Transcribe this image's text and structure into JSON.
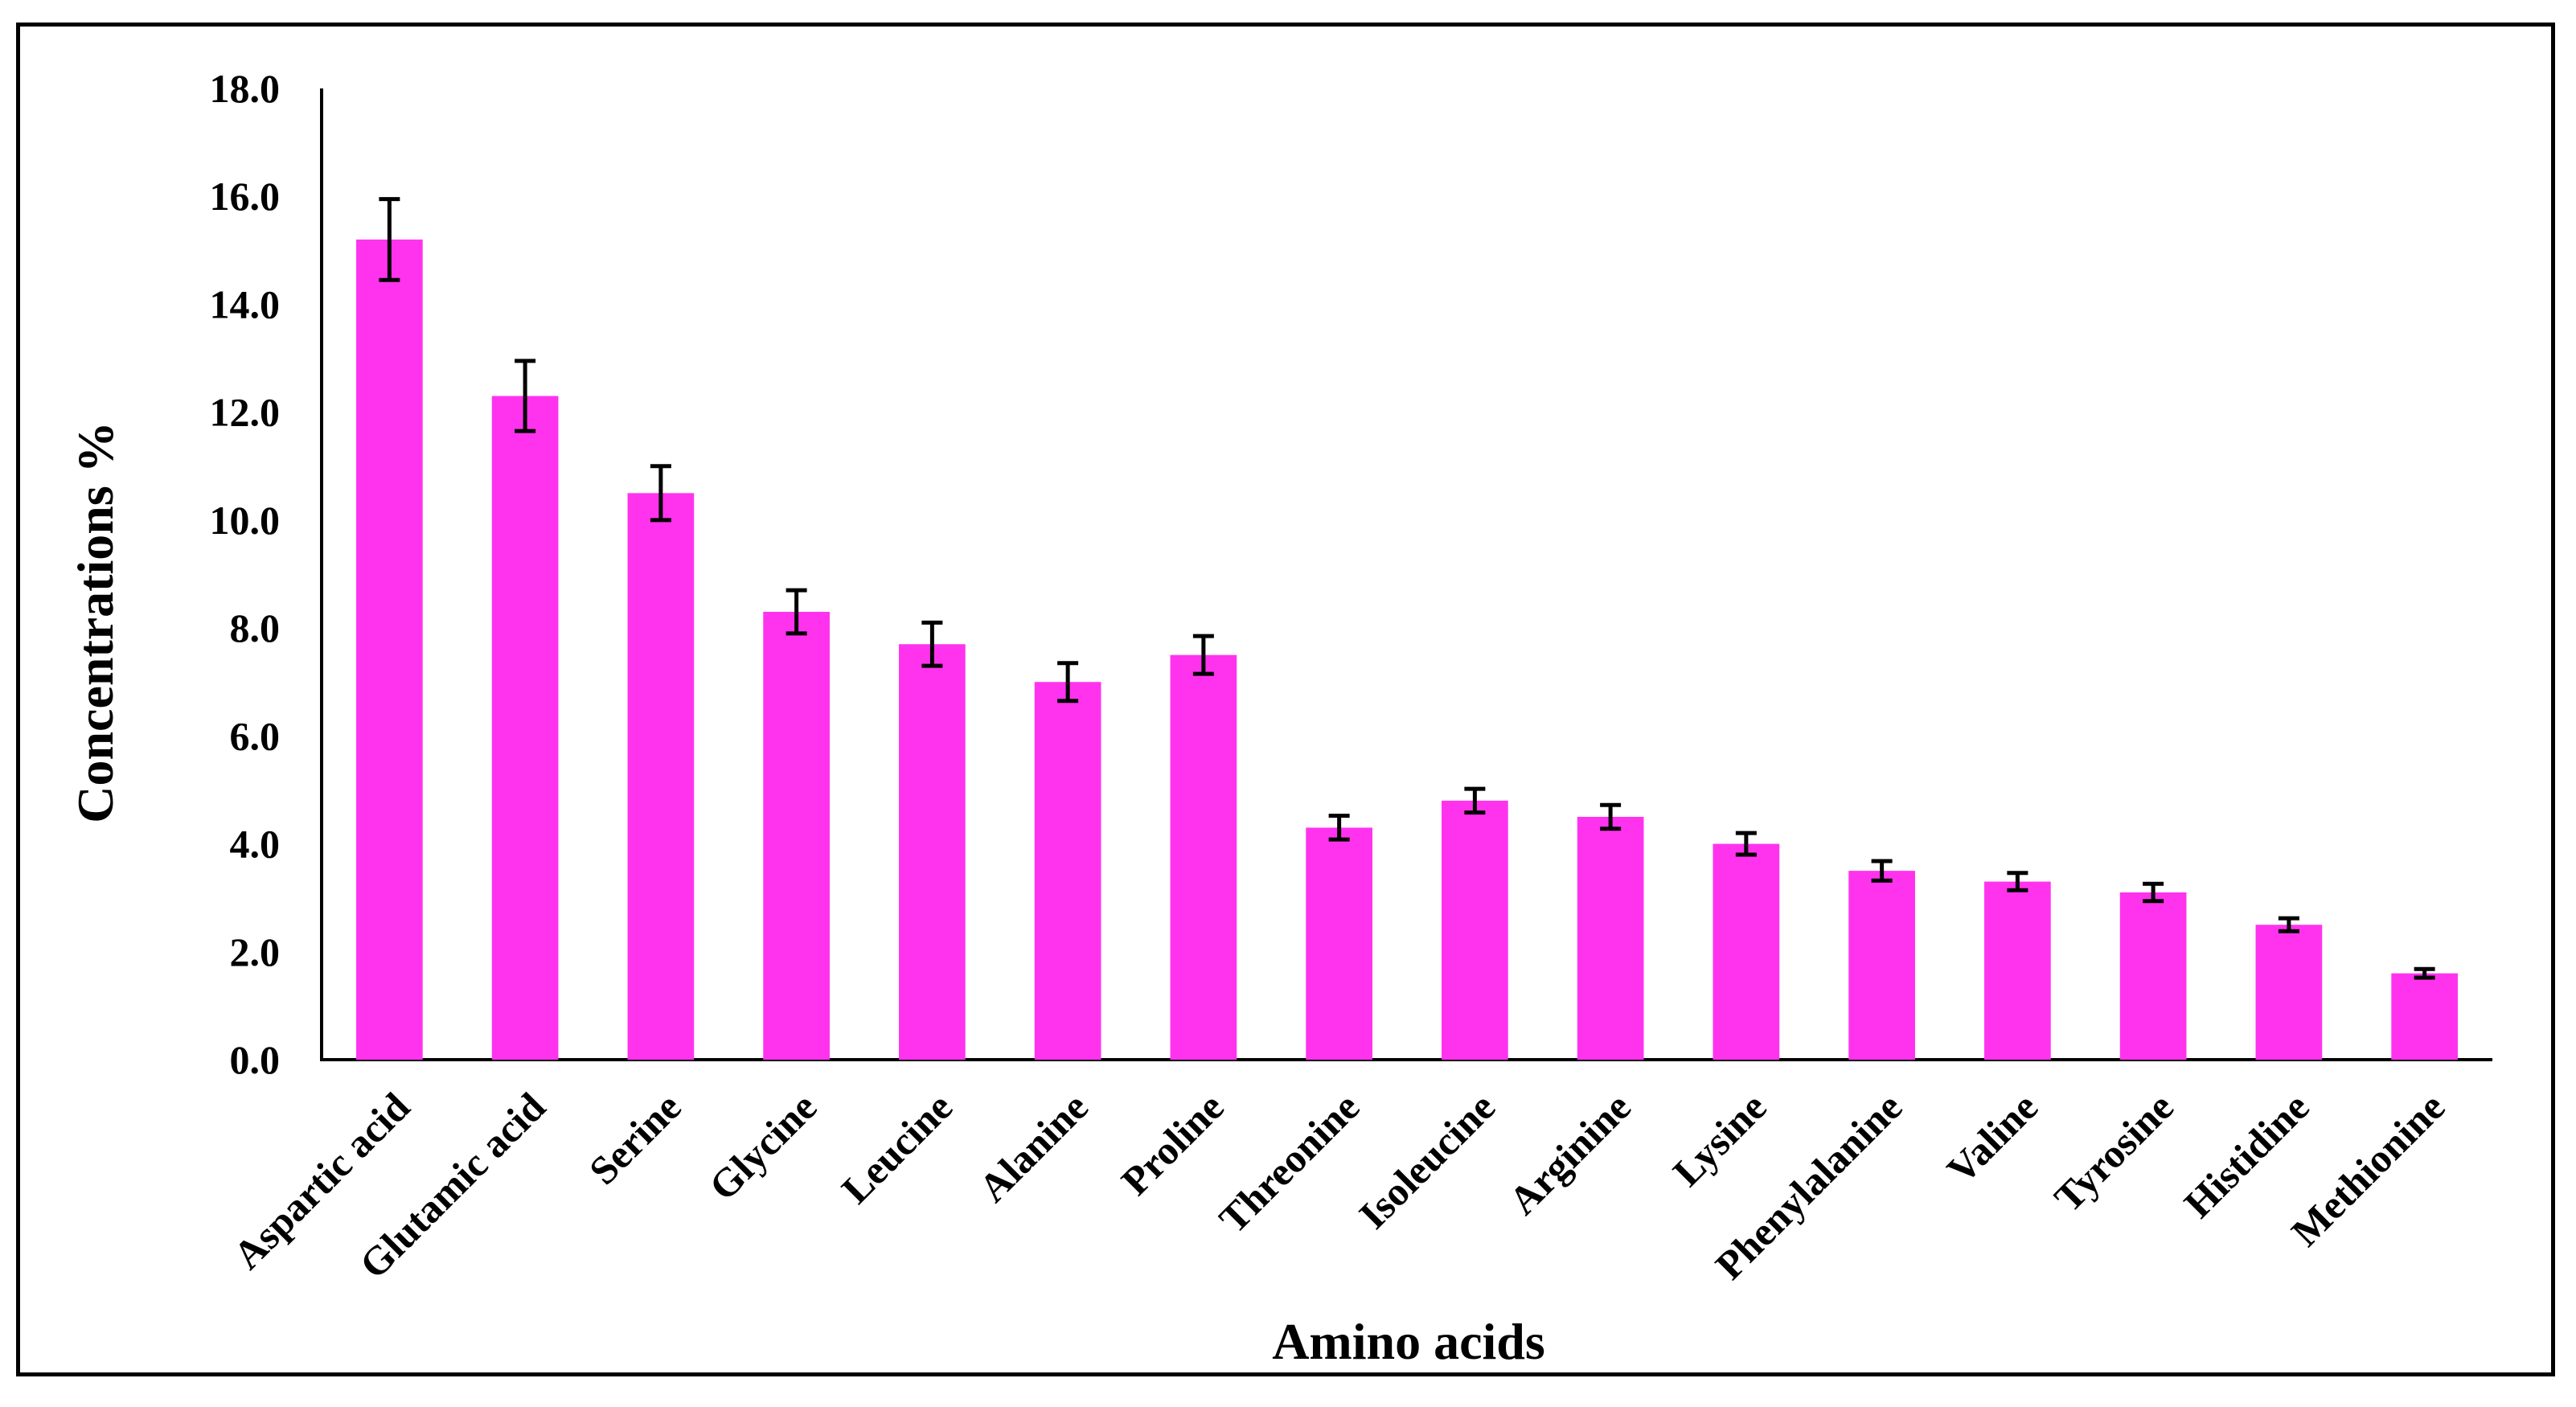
{
  "chart_data": {
    "type": "bar",
    "title": "",
    "xlabel": "Amino acids",
    "ylabel": "Concentrations  %",
    "ylim": [
      0,
      18
    ],
    "yticks": [
      "0.0",
      "2.0",
      "4.0",
      "6.0",
      "8.0",
      "10.0",
      "12.0",
      "14.0",
      "16.0",
      "18.0"
    ],
    "grid": false,
    "legend": "none",
    "bar_color": "#ff33ee",
    "categories": [
      "Aspartic acid",
      "Glutamic acid",
      "Serine",
      "Glycine",
      "Leucine",
      "Alanine",
      "Proline",
      "Threonine",
      "Isoleucine",
      "Arginine",
      "Lysine",
      "Phenylalanine",
      "Valine",
      "Tyrosine",
      "Histidine",
      "Methionine"
    ],
    "values": [
      15.2,
      12.3,
      10.5,
      8.3,
      7.7,
      7.0,
      7.5,
      4.3,
      4.8,
      4.5,
      4.0,
      3.5,
      3.3,
      3.1,
      2.5,
      1.6
    ],
    "errors": [
      0.75,
      0.65,
      0.5,
      0.4,
      0.4,
      0.35,
      0.35,
      0.22,
      0.22,
      0.22,
      0.2,
      0.18,
      0.16,
      0.16,
      0.12,
      0.08
    ]
  }
}
